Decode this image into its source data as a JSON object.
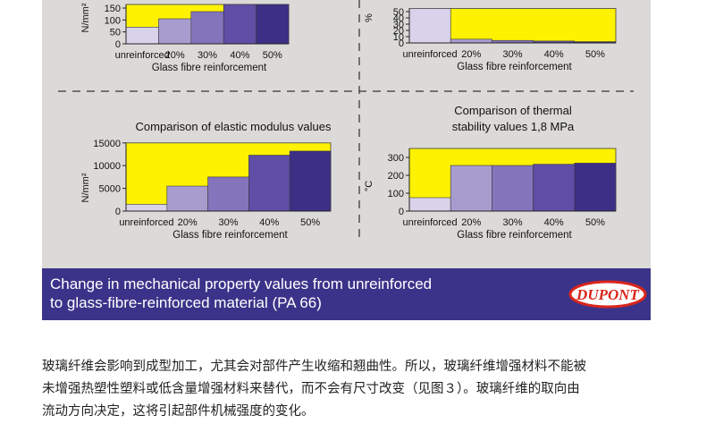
{
  "colors": {
    "panel_bg": "#dcdad8",
    "fill_area": "#fff200",
    "bar_colors": [
      "#d8d2ea",
      "#a89ccf",
      "#8474bc",
      "#5e4ea6",
      "#3d2f86"
    ],
    "caption_bg": "#3b3389",
    "logo_red": "#d9261c"
  },
  "chart_data": [
    {
      "type": "bar",
      "title": "",
      "xlabel": "Glass fibre reinforcement",
      "ylabel": "N/mm²",
      "categories": [
        "unreinforced",
        "20%",
        "30%",
        "40%",
        "50%"
      ],
      "values": [
        70,
        105,
        135,
        180,
        200
      ],
      "ylim": [
        0,
        200
      ],
      "visible_yrange": [
        0,
        165
      ],
      "yticks": [
        0,
        50,
        100,
        150
      ],
      "fill_level": 180,
      "grid": false,
      "legend": "none"
    },
    {
      "type": "bar",
      "title": "",
      "xlabel": "Glass fibre reinforcement",
      "ylabel": "%",
      "categories": [
        "unreinforced",
        "20%",
        "30%",
        "40%",
        "50%"
      ],
      "values": [
        60,
        6,
        4,
        3,
        2
      ],
      "ylim": [
        0,
        60
      ],
      "visible_yrange": [
        0,
        55
      ],
      "yticks": [
        0,
        10,
        20,
        30,
        40,
        50
      ],
      "fill_level": 60,
      "grid": false,
      "legend": "none"
    },
    {
      "type": "bar",
      "title": "Comparison of elastic modulus values",
      "xlabel": "Glass fibre reinforcement",
      "ylabel": "N/mm²",
      "categories": [
        "unreinforced",
        "20%",
        "30%",
        "40%",
        "50%"
      ],
      "values": [
        1500,
        5500,
        7500,
        12300,
        13200
      ],
      "ylim": [
        0,
        15000
      ],
      "yticks": [
        0,
        5000,
        10000,
        15000
      ],
      "fill_level": 15000,
      "grid": false,
      "legend": "none"
    },
    {
      "type": "bar",
      "title": "Comparison of thermal\nstability values  1,8 MPa",
      "xlabel": "Glass fibre reinforcement",
      "ylabel": "°C",
      "categories": [
        "unreinforced",
        "20%",
        "30%",
        "40%",
        "50%"
      ],
      "values": [
        75,
        255,
        255,
        262,
        268
      ],
      "ylim": [
        0,
        350
      ],
      "yticks": [
        0,
        100,
        200,
        300
      ],
      "fill_level": 350,
      "grid": false,
      "legend": "none"
    }
  ],
  "caption": {
    "line1": "Change in mechanical property values from unreinforced",
    "line2": "to glass-fibre-reinforced material (PA 66)"
  },
  "logo": {
    "text": "DUPONT"
  },
  "article": {
    "line1": "玻璃纤维会影响到成型加工，尤其会对部件产生收缩和翘曲性。所以，玻璃纤维增强材料不能被",
    "line2": "未增强热塑性塑料或低含量增强材料来替代，而不会有尺寸改变（见图３）。玻璃纤维的取向由",
    "line3": "流动方向决定，这将引起部件机械强度的变化。"
  }
}
